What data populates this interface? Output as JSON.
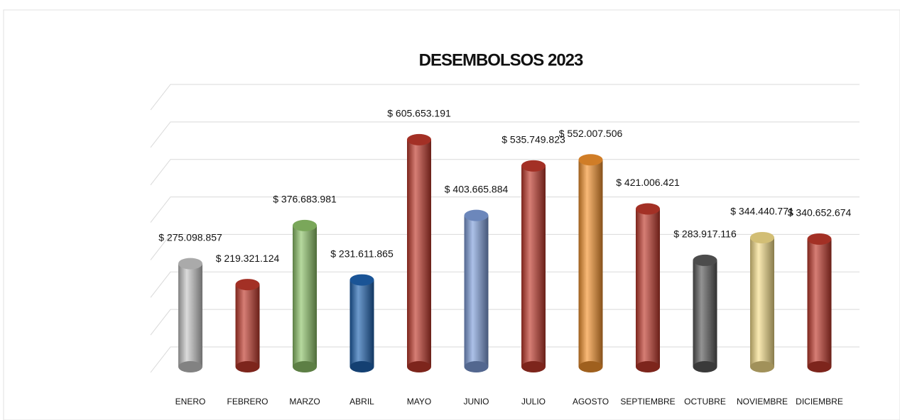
{
  "chart_data": {
    "type": "bar",
    "title": "DESEMBOLSOS 2023",
    "categories": [
      "ENERO",
      "FEBRERO",
      "MARZO",
      "ABRIL",
      "MAYO",
      "JUNIO",
      "JULIO",
      "AGOSTO",
      "SEPTIEMBRE",
      "OCTUBRE",
      "NOVIEMBRE",
      "DICIEMBRE"
    ],
    "values": [
      275098857,
      219321124,
      376683981,
      231611865,
      605653191,
      403665884,
      535749823,
      552007506,
      421006421,
      283917116,
      344440771,
      340652674
    ],
    "value_labels": [
      "$ 275.098.857",
      "$ 219.321.124",
      "$ 376.683.981",
      "$ 231.611.865",
      "$ 605.653.191",
      "$ 403.665.884",
      "$ 535.749.823",
      "$ 552.007.506",
      "$ 421.006.421",
      "$ 283.917.116",
      "$ 344.440.771",
      "$ 340.652.674"
    ],
    "colors": [
      "#c8c8c8",
      "#c0392b",
      "#8fc46a",
      "#1f63b0",
      "#c0392b",
      "#7f9fdc",
      "#c0392b",
      "#f5932e",
      "#c0392b",
      "#595959",
      "#f7df8a",
      "#c0392b"
    ],
    "ylim": [
      0,
      700000000
    ],
    "yticks": [
      0,
      100000000,
      200000000,
      300000000,
      400000000,
      500000000,
      600000000,
      700000000
    ],
    "grid": true
  }
}
